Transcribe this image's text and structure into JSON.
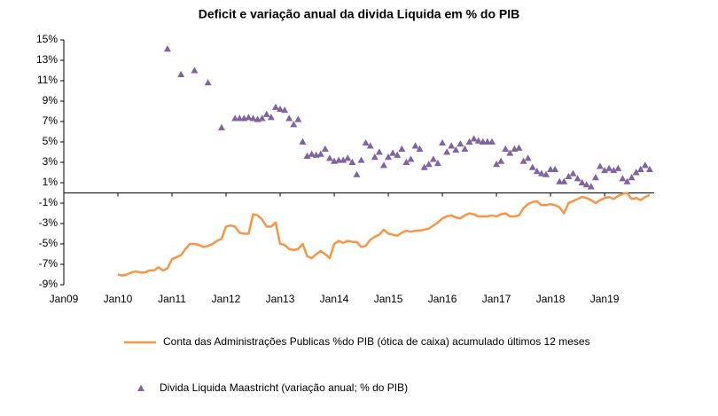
{
  "chart_data": {
    "type": "line",
    "title": "Deficit e variação anual da divida Liquida em % do PIB",
    "xlim": [
      "2009-01",
      "2019-12"
    ],
    "xticks": [
      {
        "value": "2009-01",
        "label": "Jan09"
      },
      {
        "value": "2010-01",
        "label": "Jan10"
      },
      {
        "value": "2011-01",
        "label": "Jan11"
      },
      {
        "value": "2012-01",
        "label": "Jan12"
      },
      {
        "value": "2013-01",
        "label": "Jan13"
      },
      {
        "value": "2014-01",
        "label": "Jan14"
      },
      {
        "value": "2015-01",
        "label": "Jan15"
      },
      {
        "value": "2016-01",
        "label": "Jan16"
      },
      {
        "value": "2017-01",
        "label": "Jan17"
      },
      {
        "value": "2018-01",
        "label": "Jan18"
      },
      {
        "value": "2019-01",
        "label": "Jan19"
      }
    ],
    "ylim": [
      -9,
      15
    ],
    "yticks": [
      {
        "value": -9,
        "label": "-9%"
      },
      {
        "value": -7,
        "label": "-7%"
      },
      {
        "value": -5,
        "label": "-5%"
      },
      {
        "value": -3,
        "label": "-3%"
      },
      {
        "value": -1,
        "label": "-1%"
      },
      {
        "value": 1,
        "label": "1%"
      },
      {
        "value": 3,
        "label": "3%"
      },
      {
        "value": 5,
        "label": "5%"
      },
      {
        "value": 7,
        "label": "7%"
      },
      {
        "value": 9,
        "label": "9%"
      },
      {
        "value": 11,
        "label": "11%"
      },
      {
        "value": 13,
        "label": "13%"
      },
      {
        "value": 15,
        "label": "15%"
      }
    ],
    "grid": false,
    "x": [
      "2010-01",
      "2010-02",
      "2010-03",
      "2010-04",
      "2010-05",
      "2010-06",
      "2010-07",
      "2010-08",
      "2010-09",
      "2010-10",
      "2010-11",
      "2010-12",
      "2011-01",
      "2011-02",
      "2011-03",
      "2011-04",
      "2011-05",
      "2011-06",
      "2011-07",
      "2011-08",
      "2011-09",
      "2011-10",
      "2011-11",
      "2011-12",
      "2012-01",
      "2012-02",
      "2012-03",
      "2012-04",
      "2012-05",
      "2012-06",
      "2012-07",
      "2012-08",
      "2012-09",
      "2012-10",
      "2012-11",
      "2012-12",
      "2013-01",
      "2013-02",
      "2013-03",
      "2013-04",
      "2013-05",
      "2013-06",
      "2013-07",
      "2013-08",
      "2013-09",
      "2013-10",
      "2013-11",
      "2013-12",
      "2014-01",
      "2014-02",
      "2014-03",
      "2014-04",
      "2014-05",
      "2014-06",
      "2014-07",
      "2014-08",
      "2014-09",
      "2014-10",
      "2014-11",
      "2014-12",
      "2015-01",
      "2015-02",
      "2015-03",
      "2015-04",
      "2015-05",
      "2015-06",
      "2015-07",
      "2015-08",
      "2015-09",
      "2015-10",
      "2015-11",
      "2015-12",
      "2016-01",
      "2016-02",
      "2016-03",
      "2016-04",
      "2016-05",
      "2016-06",
      "2016-07",
      "2016-08",
      "2016-09",
      "2016-10",
      "2016-11",
      "2016-12",
      "2017-01",
      "2017-02",
      "2017-03",
      "2017-04",
      "2017-05",
      "2017-06",
      "2017-07",
      "2017-08",
      "2017-09",
      "2017-10",
      "2017-11",
      "2017-12",
      "2018-01",
      "2018-02",
      "2018-03",
      "2018-04",
      "2018-05",
      "2018-06",
      "2018-07",
      "2018-08",
      "2018-09",
      "2018-10",
      "2018-11",
      "2018-12",
      "2019-01",
      "2019-02",
      "2019-03",
      "2019-04",
      "2019-05",
      "2019-06",
      "2019-07",
      "2019-08",
      "2019-09",
      "2019-10",
      "2019-11"
    ],
    "series": [
      {
        "name": "Conta das Administrações Publicas  %do PIB (ótica de caixa) acumulado últimos 12 meses",
        "type": "line",
        "color": "#f79646",
        "values": [
          -8.0,
          -8.1,
          -8.0,
          -7.8,
          -7.7,
          -7.8,
          -7.8,
          -7.6,
          -7.6,
          -7.3,
          -7.6,
          -7.4,
          -6.5,
          -6.3,
          -6.1,
          -5.5,
          -5.0,
          -5.0,
          -5.1,
          -5.3,
          -5.2,
          -5.0,
          -4.7,
          -4.5,
          -3.3,
          -3.2,
          -3.3,
          -3.9,
          -4.0,
          -4.0,
          -2.1,
          -2.2,
          -2.6,
          -3.3,
          -3.3,
          -2.9,
          -5.0,
          -5.1,
          -5.5,
          -5.6,
          -5.5,
          -5.0,
          -6.2,
          -6.4,
          -6.0,
          -5.7,
          -6.0,
          -6.4,
          -5.0,
          -4.7,
          -4.9,
          -4.7,
          -4.8,
          -4.8,
          -5.3,
          -5.2,
          -4.6,
          -4.3,
          -4.1,
          -3.6,
          -4.0,
          -4.1,
          -4.2,
          -3.9,
          -3.7,
          -3.8,
          -3.7,
          -3.7,
          -3.6,
          -3.5,
          -3.2,
          -2.9,
          -2.5,
          -2.3,
          -2.2,
          -2.4,
          -2.5,
          -2.2,
          -2.0,
          -2.1,
          -2.3,
          -2.3,
          -2.3,
          -2.2,
          -2.3,
          -2.1,
          -2.0,
          -2.3,
          -2.3,
          -2.2,
          -1.5,
          -1.1,
          -0.9,
          -0.8,
          -1.2,
          -1.2,
          -1.1,
          -1.2,
          -1.4,
          -2.0,
          -1.0,
          -0.8,
          -0.6,
          -0.4,
          -0.5,
          -0.7,
          -1.0,
          -0.7,
          -0.5,
          -0.4,
          -0.6,
          -0.3,
          -0.1,
          0.0,
          -0.6,
          -0.5,
          -0.7,
          -0.4,
          -0.2
        ]
      },
      {
        "name": "Divida Liquida Maastricht  (variação anual; % do PIB)",
        "type": "scatter",
        "color": "#8064a2",
        "values": [
          null,
          null,
          null,
          null,
          null,
          null,
          null,
          null,
          null,
          null,
          null,
          14.1,
          null,
          null,
          11.6,
          null,
          null,
          12.0,
          null,
          null,
          10.8,
          null,
          null,
          6.4,
          null,
          null,
          7.3,
          7.3,
          7.3,
          7.4,
          7.3,
          7.2,
          7.3,
          7.7,
          7.4,
          8.4,
          8.2,
          8.1,
          7.3,
          6.7,
          7.2,
          5.0,
          3.6,
          3.8,
          3.7,
          3.8,
          4.3,
          3.4,
          3.1,
          3.2,
          3.2,
          3.4,
          3.0,
          1.8,
          3.2,
          4.9,
          4.6,
          3.5,
          4.0,
          2.7,
          3.5,
          3.9,
          3.7,
          4.3,
          3.0,
          3.3,
          4.6,
          4.3,
          2.5,
          2.8,
          3.3,
          2.9,
          4.9,
          4.0,
          4.6,
          4.2,
          4.8,
          4.3,
          5.0,
          5.3,
          5.1,
          5.0,
          5.0,
          5.0,
          2.8,
          3.1,
          4.3,
          3.9,
          4.3,
          4.4,
          3.1,
          3.4,
          2.5,
          2.1,
          1.9,
          1.8,
          2.3,
          2.3,
          1.1,
          1.1,
          1.6,
          1.9,
          1.4,
          1.0,
          0.8,
          0.6,
          1.5,
          2.6,
          2.2,
          2.4,
          2.2,
          2.4,
          1.4,
          1.1,
          1.5,
          2.0,
          2.3,
          2.7,
          2.3
        ]
      }
    ]
  }
}
